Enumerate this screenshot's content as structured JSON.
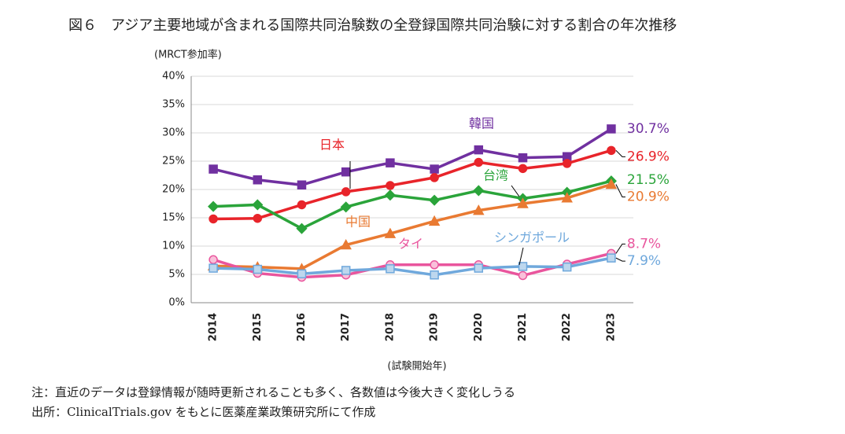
{
  "chart_data": {
    "type": "line",
    "title": "図６　アジア主要地域が含まれる国際共同治験数の全登録国際共同治験に対する割合の年次推移",
    "y_label": "(MRCT参加率)",
    "x_label": "(試験開始年)",
    "notes": [
      "注：直近のデータは登録情報が随時更新されることも多く、各数値は今後大きく変化しうる",
      "出所：ClinicalTrials.gov をもとに医薬産業政策研究所にて作成"
    ],
    "categories": [
      "2014",
      "2015",
      "2016",
      "2017",
      "2018",
      "2019",
      "2020",
      "2021",
      "2022",
      "2023"
    ],
    "ylim": [
      0,
      40
    ],
    "yticks": [
      {
        "value": 0,
        "label": "0%"
      },
      {
        "value": 5,
        "label": "5%"
      },
      {
        "value": 10,
        "label": "10%"
      },
      {
        "value": 15,
        "label": "15%"
      },
      {
        "value": 20,
        "label": "20%"
      },
      {
        "value": 25,
        "label": "25%"
      },
      {
        "value": 30,
        "label": "30%"
      },
      {
        "value": 35,
        "label": "35%"
      },
      {
        "value": 40,
        "label": "40%"
      }
    ],
    "grid": true,
    "series": [
      {
        "name": "韓国",
        "color": "#7030a0",
        "marker": "square",
        "values": [
          23.6,
          21.7,
          20.8,
          23.1,
          24.7,
          23.6,
          27.0,
          25.6,
          25.8,
          30.7
        ],
        "value_labels": [
          null,
          null,
          null,
          null,
          null,
          null,
          null,
          null,
          null,
          "30.7%"
        ]
      },
      {
        "name": "日本",
        "color": "#e8242a",
        "marker": "circle",
        "values": [
          14.8,
          14.9,
          17.3,
          19.6,
          20.7,
          22.1,
          24.8,
          23.7,
          24.6,
          26.9
        ],
        "value_labels": [
          null,
          null,
          null,
          null,
          null,
          null,
          null,
          null,
          null,
          "26.9%"
        ]
      },
      {
        "name": "台湾",
        "color": "#2aa43a",
        "marker": "diamond",
        "values": [
          17.0,
          17.3,
          13.1,
          16.9,
          19.0,
          18.1,
          19.8,
          18.4,
          19.5,
          21.5
        ],
        "value_labels": [
          null,
          null,
          null,
          null,
          null,
          null,
          null,
          null,
          null,
          "21.5%"
        ]
      },
      {
        "name": "中国",
        "color": "#e97a32",
        "marker": "triangle",
        "values": [
          6.5,
          6.3,
          6.0,
          10.2,
          12.2,
          14.4,
          16.3,
          17.5,
          18.5,
          20.9
        ],
        "value_labels": [
          null,
          null,
          null,
          null,
          null,
          null,
          null,
          null,
          null,
          "20.9%"
        ]
      },
      {
        "name": "タイ",
        "color": "#e9559d",
        "marker": "circle-light",
        "values": [
          7.6,
          5.2,
          4.5,
          4.9,
          6.7,
          6.7,
          6.7,
          4.8,
          6.8,
          8.7
        ],
        "value_labels": [
          null,
          null,
          null,
          null,
          null,
          null,
          null,
          null,
          null,
          "8.7%"
        ]
      },
      {
        "name": "シンガポール",
        "color": "#6fa8dc",
        "marker": "square-light",
        "values": [
          6.1,
          5.9,
          5.1,
          5.7,
          6.0,
          4.9,
          6.1,
          6.4,
          6.3,
          7.9
        ],
        "value_labels": [
          null,
          null,
          null,
          null,
          null,
          null,
          null,
          null,
          null,
          "7.9%"
        ]
      }
    ]
  }
}
